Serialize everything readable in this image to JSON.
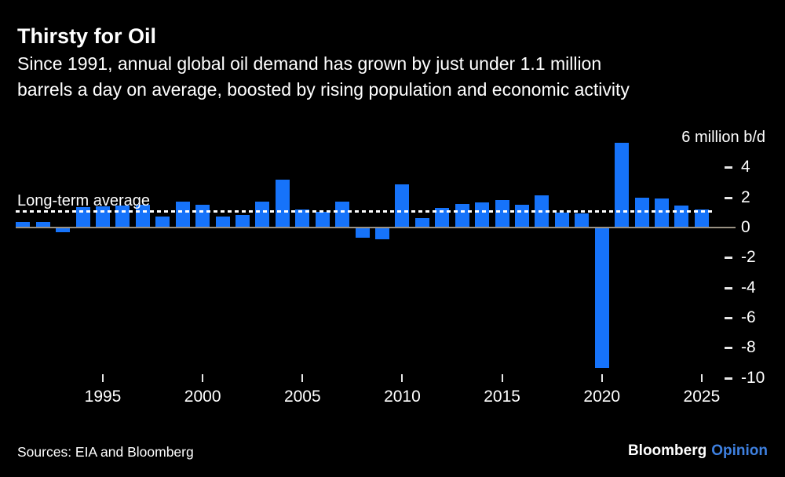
{
  "header": {
    "title": "Thirsty for Oil",
    "subtitle_line1": "Since 1991, annual global oil demand has grown by just under 1.1 million",
    "subtitle_line2": "barrels a day on average, boosted by rising population and economic activity"
  },
  "chart_data": {
    "type": "bar",
    "title": "Thirsty for Oil",
    "xlabel": "",
    "ylabel": "",
    "unit_label": "6 million b/d",
    "average_label": "Long-term average",
    "long_term_average": 1.1,
    "x": [
      1991,
      1992,
      1993,
      1994,
      1995,
      1996,
      1997,
      1998,
      1999,
      2000,
      2001,
      2002,
      2003,
      2004,
      2005,
      2006,
      2007,
      2008,
      2009,
      2010,
      2011,
      2012,
      2013,
      2014,
      2015,
      2016,
      2017,
      2018,
      2019,
      2020,
      2021,
      2022,
      2023,
      2024,
      2025
    ],
    "values": [
      0.35,
      0.35,
      -0.25,
      1.35,
      1.4,
      1.45,
      1.5,
      0.75,
      1.7,
      1.5,
      0.75,
      0.85,
      1.7,
      3.2,
      1.2,
      1.05,
      1.7,
      -0.6,
      -0.75,
      2.85,
      0.65,
      1.3,
      1.55,
      1.65,
      1.85,
      1.5,
      2.15,
      1.0,
      0.95,
      -9.3,
      5.65,
      2.0,
      1.95,
      1.45,
      1.2
    ],
    "y_ticks": [
      4,
      2,
      0,
      -2,
      -4,
      -6,
      -8,
      -10
    ],
    "x_ticks": [
      1995,
      2000,
      2005,
      2010,
      2015,
      2020,
      2025
    ],
    "ylim": [
      -10,
      6
    ],
    "grid": "off",
    "legend": "none",
    "bar_color": "#1673FA",
    "axis_line_color": "#9A9183",
    "average_line_color": "#FFFFFF"
  },
  "footer": {
    "source": "Sources: EIA and Bloomberg",
    "brand": "Bloomberg",
    "brand_suffix": "Opinion",
    "opinion_color": "#3E80E0"
  }
}
